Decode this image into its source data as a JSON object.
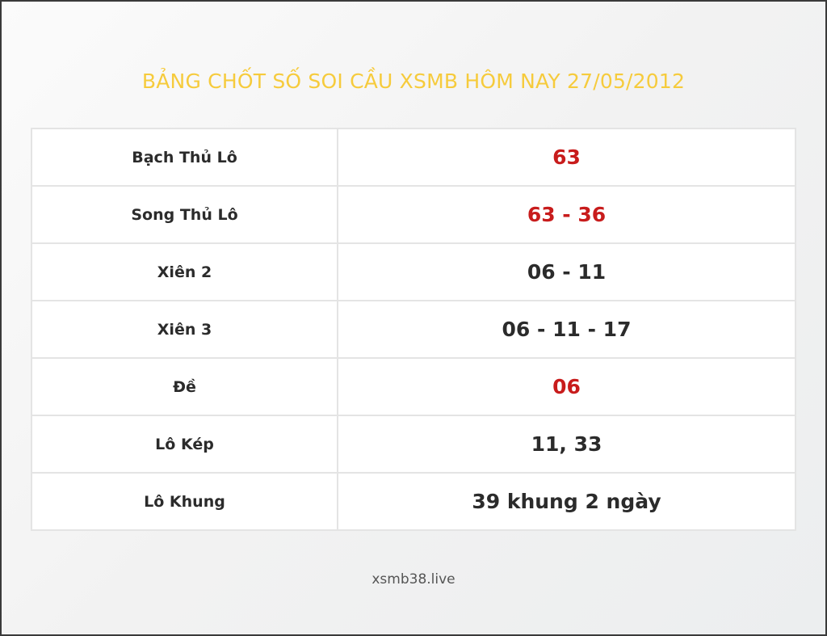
{
  "title": "BẢNG CHỐT SỐ SOI CẦU XSMB HÔM NAY 27/05/2012",
  "colors": {
    "title": "#f6cb3c",
    "highlight": "#c81c1c",
    "text": "#2b2b2b"
  },
  "rows": [
    {
      "label": "Bạch Thủ Lô",
      "value": "63",
      "highlight": true
    },
    {
      "label": "Song Thủ Lô",
      "value": "63 - 36",
      "highlight": true
    },
    {
      "label": "Xiên 2",
      "value": "06 - 11",
      "highlight": false
    },
    {
      "label": "Xiên 3",
      "value": "06 - 11 - 17",
      "highlight": false
    },
    {
      "label": "Đề",
      "value": "06",
      "highlight": true
    },
    {
      "label": "Lô Kép",
      "value": "11, 33",
      "highlight": false
    },
    {
      "label": "Lô Khung",
      "value": "39 khung 2 ngày",
      "highlight": false
    }
  ],
  "footer": "xsmb38.live"
}
